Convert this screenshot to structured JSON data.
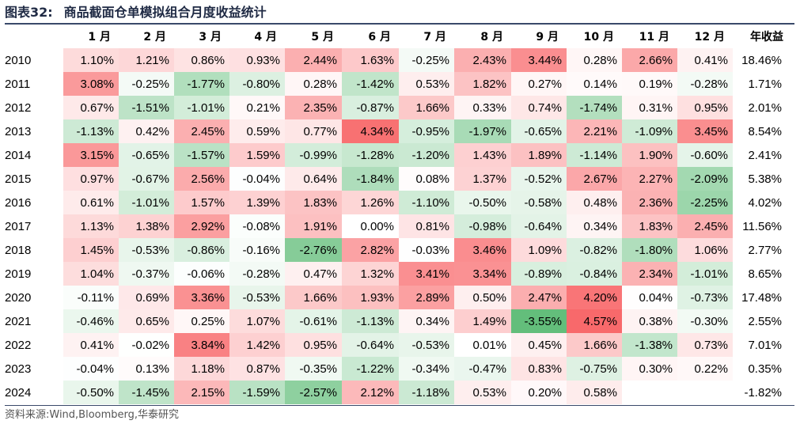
{
  "title": {
    "label": "图表32:",
    "text": "商品截面仓单模拟组合月度收益统计"
  },
  "source": "资料来源:Wind,Bloomberg,华泰研究",
  "chart_data": {
    "type": "table",
    "title": "商品截面仓单模拟组合月度收益统计",
    "columns": [
      "1 月",
      "2 月",
      "3 月",
      "4 月",
      "5 月",
      "6 月",
      "7 月",
      "8 月",
      "9 月",
      "10 月",
      "11 月",
      "12 月",
      "年收益"
    ],
    "rows": [
      {
        "year": "2010",
        "months": [
          "1.10%",
          "1.21%",
          "0.86%",
          "0.93%",
          "2.44%",
          "1.63%",
          "-0.25%",
          "2.43%",
          "3.44%",
          "0.28%",
          "2.66%",
          "0.41%"
        ],
        "total": "18.46%"
      },
      {
        "year": "2011",
        "months": [
          "3.08%",
          "-0.25%",
          "-1.77%",
          "-0.80%",
          "0.28%",
          "-1.42%",
          "0.53%",
          "1.82%",
          "0.27%",
          "0.14%",
          "0.19%",
          "-0.28%"
        ],
        "total": "1.71%"
      },
      {
        "year": "2012",
        "months": [
          "0.67%",
          "-1.51%",
          "-1.01%",
          "0.21%",
          "2.35%",
          "-0.87%",
          "1.66%",
          "0.33%",
          "0.74%",
          "-1.74%",
          "0.31%",
          "0.95%"
        ],
        "total": "2.01%"
      },
      {
        "year": "2013",
        "months": [
          "-1.13%",
          "0.42%",
          "2.45%",
          "0.59%",
          "0.77%",
          "4.34%",
          "-0.95%",
          "-1.97%",
          "-0.65%",
          "2.21%",
          "-1.09%",
          "3.45%"
        ],
        "total": "8.54%"
      },
      {
        "year": "2014",
        "months": [
          "3.15%",
          "-0.65%",
          "-1.57%",
          "1.59%",
          "-0.99%",
          "-1.28%",
          "-1.20%",
          "1.43%",
          "1.89%",
          "-1.14%",
          "1.90%",
          "-0.60%"
        ],
        "total": "2.41%"
      },
      {
        "year": "2015",
        "months": [
          "0.97%",
          "-0.67%",
          "2.56%",
          "-0.04%",
          "0.64%",
          "-1.84%",
          "0.08%",
          "1.37%",
          "-0.52%",
          "2.67%",
          "2.27%",
          "-2.09%"
        ],
        "total": "5.38%"
      },
      {
        "year": "2016",
        "months": [
          "0.61%",
          "-1.01%",
          "1.57%",
          "1.39%",
          "1.83%",
          "1.26%",
          "-1.10%",
          "-0.50%",
          "-0.58%",
          "0.48%",
          "2.36%",
          "-2.25%"
        ],
        "total": "4.02%"
      },
      {
        "year": "2017",
        "months": [
          "1.13%",
          "1.38%",
          "2.92%",
          "-0.08%",
          "1.91%",
          "0.00%",
          "0.81%",
          "-0.98%",
          "-0.64%",
          "0.34%",
          "1.83%",
          "2.45%"
        ],
        "total": "11.56%"
      },
      {
        "year": "2018",
        "months": [
          "1.45%",
          "-0.53%",
          "-0.86%",
          "-0.16%",
          "-2.76%",
          "2.82%",
          "-0.03%",
          "3.46%",
          "1.09%",
          "-0.82%",
          "-1.80%",
          "1.06%"
        ],
        "total": "2.77%"
      },
      {
        "year": "2019",
        "months": [
          "1.04%",
          "-0.37%",
          "-0.06%",
          "-0.28%",
          "0.47%",
          "1.32%",
          "3.41%",
          "3.34%",
          "-0.89%",
          "-0.84%",
          "2.34%",
          "-1.01%"
        ],
        "total": "8.65%"
      },
      {
        "year": "2020",
        "months": [
          "-0.11%",
          "0.69%",
          "3.36%",
          "-0.53%",
          "1.66%",
          "1.93%",
          "2.89%",
          "0.50%",
          "2.47%",
          "4.20%",
          "0.04%",
          "-0.73%"
        ],
        "total": "17.48%"
      },
      {
        "year": "2021",
        "months": [
          "-0.46%",
          "0.65%",
          "0.25%",
          "1.07%",
          "-0.61%",
          "-1.13%",
          "0.34%",
          "1.49%",
          "-3.55%",
          "4.57%",
          "0.38%",
          "-0.30%"
        ],
        "total": "2.55%"
      },
      {
        "year": "2022",
        "months": [
          "0.41%",
          "-0.02%",
          "3.84%",
          "1.42%",
          "0.95%",
          "-0.64%",
          "-0.53%",
          "0.01%",
          "0.45%",
          "1.66%",
          "-1.38%",
          "0.73%"
        ],
        "total": "7.01%"
      },
      {
        "year": "2023",
        "months": [
          "-0.04%",
          "0.13%",
          "1.18%",
          "0.87%",
          "-0.35%",
          "-1.22%",
          "-0.34%",
          "-0.47%",
          "0.83%",
          "-0.75%",
          "0.30%",
          "0.22%"
        ],
        "total": "0.35%"
      },
      {
        "year": "2024",
        "months": [
          "-0.50%",
          "-1.45%",
          "2.15%",
          "-1.59%",
          "-2.57%",
          "2.12%",
          "-1.18%",
          "0.53%",
          "0.20%",
          "0.58%",
          "",
          ""
        ],
        "total": "-1.82%"
      }
    ],
    "colors": {
      "positive_max": "#f8696b",
      "negative_max": "#63be7b",
      "neutral": "#ffffff"
    }
  }
}
